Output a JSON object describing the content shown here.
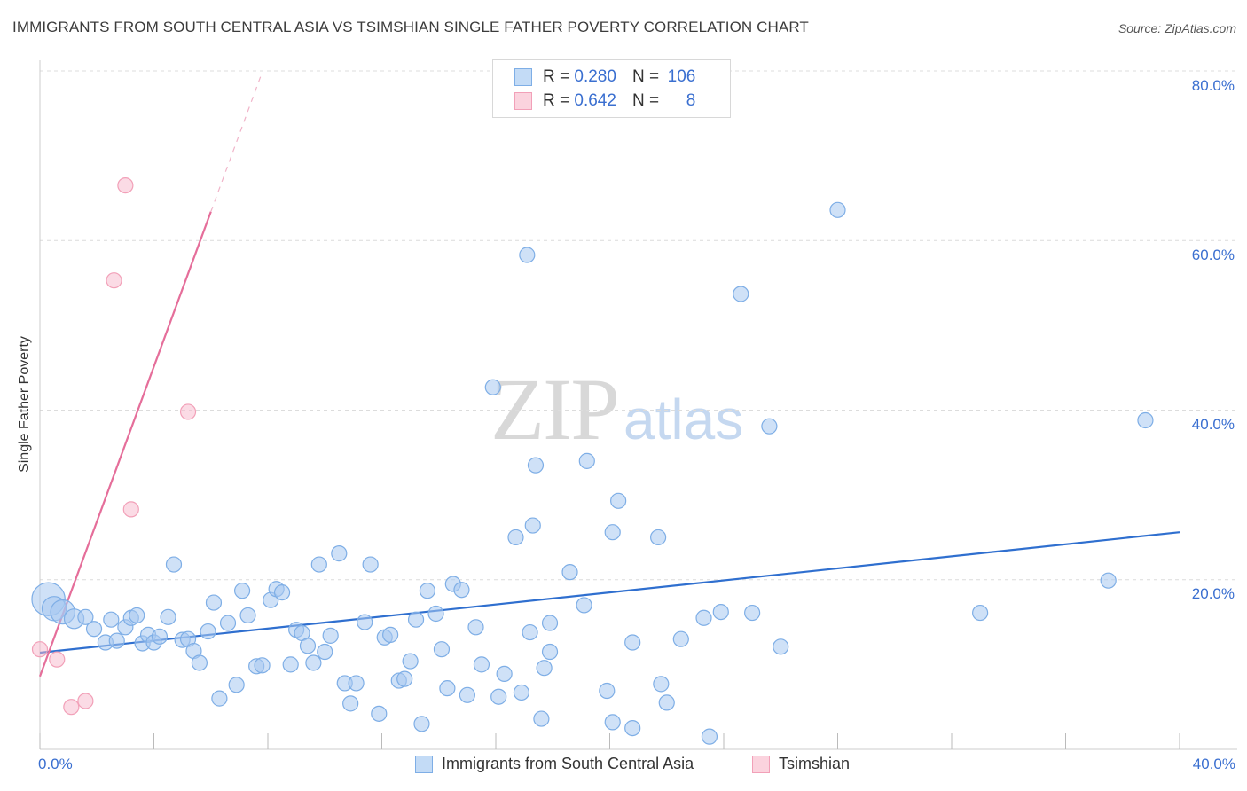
{
  "header": {
    "title": "IMMIGRANTS FROM SOUTH CENTRAL ASIA VS TSIMSHIAN SINGLE FATHER POVERTY CORRELATION CHART",
    "source": "Source: ZipAtlas.com"
  },
  "watermark": {
    "zip": "ZIP",
    "atlas": "atlas"
  },
  "stats_legend": [
    {
      "r_label": "R =",
      "r_value": "0.280",
      "n_label": "N =",
      "n_value": "106",
      "color": "#a8c8f0"
    },
    {
      "r_label": "R =",
      "r_value": "0.642",
      "n_label": "N =",
      "n_value": "8",
      "color": "#f8b8cc"
    }
  ],
  "axis_labels": {
    "x_min": "0.0%",
    "x_max": "40.0%",
    "y_ticks": [
      "80.0%",
      "60.0%",
      "40.0%",
      "20.0%"
    ]
  },
  "chart_data": {
    "type": "scatter",
    "title": "IMMIGRANTS FROM SOUTH CENTRAL ASIA VS TSIMSHIAN SINGLE FATHER POVERTY CORRELATION CHART",
    "xlabel": "",
    "ylabel": "Single Father Poverty",
    "xlim": [
      0,
      40
    ],
    "ylim": [
      0,
      80
    ],
    "grid": "horizontal dashed",
    "legend": "bottom",
    "colors": {
      "blue": "#7eaee6",
      "blue_line": "#2f6fcf",
      "pink": "#f2a0b8",
      "pink_line": "#e56e9a"
    },
    "series": [
      {
        "name": "Immigrants from South Central Asia",
        "color": "#7eaee6",
        "trend": {
          "x0": 0,
          "y0": 11.4,
          "x1": 40,
          "y1": 25.6
        },
        "points": [
          {
            "x": 0.3,
            "y": 17.7,
            "s": 2.2
          },
          {
            "x": 0.5,
            "y": 16.6,
            "s": 1.6
          },
          {
            "x": 0.8,
            "y": 16.2,
            "s": 1.6
          },
          {
            "x": 1.2,
            "y": 15.4,
            "s": 1.3
          },
          {
            "x": 1.6,
            "y": 15.6,
            "s": 1.0
          },
          {
            "x": 1.9,
            "y": 14.2,
            "s": 1.0
          },
          {
            "x": 2.3,
            "y": 12.6,
            "s": 1.0
          },
          {
            "x": 2.5,
            "y": 15.3,
            "s": 1.0
          },
          {
            "x": 2.7,
            "y": 12.8,
            "s": 1.0
          },
          {
            "x": 3.0,
            "y": 14.4,
            "s": 1.0
          },
          {
            "x": 3.2,
            "y": 15.5,
            "s": 1.0
          },
          {
            "x": 3.4,
            "y": 15.8,
            "s": 1.0
          },
          {
            "x": 3.6,
            "y": 12.5,
            "s": 1.0
          },
          {
            "x": 3.8,
            "y": 13.5,
            "s": 1.0
          },
          {
            "x": 4.0,
            "y": 12.6,
            "s": 1.0
          },
          {
            "x": 4.2,
            "y": 13.3,
            "s": 1.0
          },
          {
            "x": 4.5,
            "y": 15.6,
            "s": 1.0
          },
          {
            "x": 4.7,
            "y": 21.8,
            "s": 1.0
          },
          {
            "x": 5.0,
            "y": 12.9,
            "s": 1.0
          },
          {
            "x": 5.2,
            "y": 13.0,
            "s": 1.0
          },
          {
            "x": 5.4,
            "y": 11.6,
            "s": 1.0
          },
          {
            "x": 5.6,
            "y": 10.2,
            "s": 1.0
          },
          {
            "x": 5.9,
            "y": 13.9,
            "s": 1.0
          },
          {
            "x": 6.1,
            "y": 17.3,
            "s": 1.0
          },
          {
            "x": 6.3,
            "y": 6.0,
            "s": 1.0
          },
          {
            "x": 6.6,
            "y": 14.9,
            "s": 1.0
          },
          {
            "x": 6.9,
            "y": 7.6,
            "s": 1.0
          },
          {
            "x": 7.1,
            "y": 18.7,
            "s": 1.0
          },
          {
            "x": 7.3,
            "y": 15.8,
            "s": 1.0
          },
          {
            "x": 7.6,
            "y": 9.8,
            "s": 1.0
          },
          {
            "x": 7.8,
            "y": 9.9,
            "s": 1.0
          },
          {
            "x": 8.1,
            "y": 17.6,
            "s": 1.0
          },
          {
            "x": 8.3,
            "y": 18.9,
            "s": 1.0
          },
          {
            "x": 8.5,
            "y": 18.5,
            "s": 1.0
          },
          {
            "x": 8.8,
            "y": 10.0,
            "s": 1.0
          },
          {
            "x": 9.0,
            "y": 14.1,
            "s": 1.0
          },
          {
            "x": 9.2,
            "y": 13.7,
            "s": 1.0
          },
          {
            "x": 9.4,
            "y": 12.2,
            "s": 1.0
          },
          {
            "x": 9.6,
            "y": 10.2,
            "s": 1.0
          },
          {
            "x": 9.8,
            "y": 21.8,
            "s": 1.0
          },
          {
            "x": 10.0,
            "y": 11.5,
            "s": 1.0
          },
          {
            "x": 10.2,
            "y": 13.4,
            "s": 1.0
          },
          {
            "x": 10.5,
            "y": 23.1,
            "s": 1.0
          },
          {
            "x": 10.7,
            "y": 7.8,
            "s": 1.0
          },
          {
            "x": 10.9,
            "y": 5.4,
            "s": 1.0
          },
          {
            "x": 11.1,
            "y": 7.8,
            "s": 1.0
          },
          {
            "x": 11.4,
            "y": 15.0,
            "s": 1.0
          },
          {
            "x": 11.6,
            "y": 21.8,
            "s": 1.0
          },
          {
            "x": 11.9,
            "y": 4.2,
            "s": 1.0
          },
          {
            "x": 12.1,
            "y": 13.2,
            "s": 1.0
          },
          {
            "x": 12.3,
            "y": 13.5,
            "s": 1.0
          },
          {
            "x": 12.6,
            "y": 8.1,
            "s": 1.0
          },
          {
            "x": 12.8,
            "y": 8.3,
            "s": 1.0
          },
          {
            "x": 13.0,
            "y": 10.4,
            "s": 1.0
          },
          {
            "x": 13.2,
            "y": 15.3,
            "s": 1.0
          },
          {
            "x": 13.4,
            "y": 3.0,
            "s": 1.0
          },
          {
            "x": 13.6,
            "y": 18.7,
            "s": 1.0
          },
          {
            "x": 13.9,
            "y": 16.0,
            "s": 1.0
          },
          {
            "x": 14.1,
            "y": 11.8,
            "s": 1.0
          },
          {
            "x": 14.3,
            "y": 7.2,
            "s": 1.0
          },
          {
            "x": 14.5,
            "y": 19.5,
            "s": 1.0
          },
          {
            "x": 14.8,
            "y": 18.8,
            "s": 1.0
          },
          {
            "x": 15.0,
            "y": 6.4,
            "s": 1.0
          },
          {
            "x": 15.3,
            "y": 14.4,
            "s": 1.0
          },
          {
            "x": 15.5,
            "y": 10.0,
            "s": 1.0
          },
          {
            "x": 15.9,
            "y": 42.7,
            "s": 1.0
          },
          {
            "x": 16.1,
            "y": 6.2,
            "s": 1.0
          },
          {
            "x": 16.3,
            "y": 8.9,
            "s": 1.0
          },
          {
            "x": 16.7,
            "y": 25.0,
            "s": 1.0
          },
          {
            "x": 16.9,
            "y": 6.7,
            "s": 1.0
          },
          {
            "x": 17.2,
            "y": 13.8,
            "s": 1.0
          },
          {
            "x": 17.3,
            "y": 26.4,
            "s": 1.0
          },
          {
            "x": 17.7,
            "y": 9.6,
            "s": 1.0
          },
          {
            "x": 17.9,
            "y": 14.9,
            "s": 1.0
          },
          {
            "x": 17.1,
            "y": 58.3,
            "s": 1.0
          },
          {
            "x": 17.6,
            "y": 3.6,
            "s": 1.0
          },
          {
            "x": 17.9,
            "y": 11.5,
            "s": 1.0
          },
          {
            "x": 17.4,
            "y": 33.5,
            "s": 1.0
          },
          {
            "x": 18.6,
            "y": 20.9,
            "s": 1.0
          },
          {
            "x": 19.1,
            "y": 17.0,
            "s": 1.0
          },
          {
            "x": 19.2,
            "y": 34.0,
            "s": 1.0
          },
          {
            "x": 19.9,
            "y": 6.9,
            "s": 1.0
          },
          {
            "x": 20.1,
            "y": 25.6,
            "s": 1.0
          },
          {
            "x": 20.1,
            "y": 3.2,
            "s": 1.0
          },
          {
            "x": 20.3,
            "y": 29.3,
            "s": 1.0
          },
          {
            "x": 20.8,
            "y": 12.6,
            "s": 1.0
          },
          {
            "x": 20.8,
            "y": 2.5,
            "s": 1.0
          },
          {
            "x": 21.7,
            "y": 25.0,
            "s": 1.0
          },
          {
            "x": 21.8,
            "y": 7.7,
            "s": 1.0
          },
          {
            "x": 22.0,
            "y": 5.5,
            "s": 1.0
          },
          {
            "x": 22.5,
            "y": 13.0,
            "s": 1.0
          },
          {
            "x": 23.3,
            "y": 15.5,
            "s": 1.0
          },
          {
            "x": 23.5,
            "y": 1.5,
            "s": 1.0
          },
          {
            "x": 23.9,
            "y": 16.2,
            "s": 1.0
          },
          {
            "x": 24.6,
            "y": 53.7,
            "s": 1.0
          },
          {
            "x": 25.0,
            "y": 16.1,
            "s": 1.0
          },
          {
            "x": 25.6,
            "y": 38.1,
            "s": 1.0
          },
          {
            "x": 26.0,
            "y": 12.1,
            "s": 1.0
          },
          {
            "x": 28.0,
            "y": 63.6,
            "s": 1.0
          },
          {
            "x": 33.0,
            "y": 16.1,
            "s": 1.0
          },
          {
            "x": 37.5,
            "y": 19.9,
            "s": 1.0
          },
          {
            "x": 38.8,
            "y": 38.8,
            "s": 1.0
          }
        ]
      },
      {
        "name": "Tsimshian",
        "color": "#f2a0b8",
        "trend": {
          "x0": 0,
          "y0": 8.6,
          "x1": 6.0,
          "y1": 63.4,
          "dash_to_x": 7.8
        },
        "points": [
          {
            "x": 0.0,
            "y": 11.8,
            "s": 1.0
          },
          {
            "x": 0.6,
            "y": 10.6,
            "s": 1.0
          },
          {
            "x": 1.1,
            "y": 5.0,
            "s": 1.0
          },
          {
            "x": 1.6,
            "y": 5.7,
            "s": 1.0
          },
          {
            "x": 2.6,
            "y": 55.3,
            "s": 1.0
          },
          {
            "x": 3.0,
            "y": 66.5,
            "s": 1.0
          },
          {
            "x": 3.2,
            "y": 28.3,
            "s": 1.0
          },
          {
            "x": 5.2,
            "y": 39.8,
            "s": 1.0
          }
        ]
      }
    ]
  },
  "bottom_legend": [
    {
      "label": "Immigrants from South Central Asia",
      "color": "#a8c8f0"
    },
    {
      "label": "Tsimshian",
      "color": "#f8b8cc"
    }
  ]
}
